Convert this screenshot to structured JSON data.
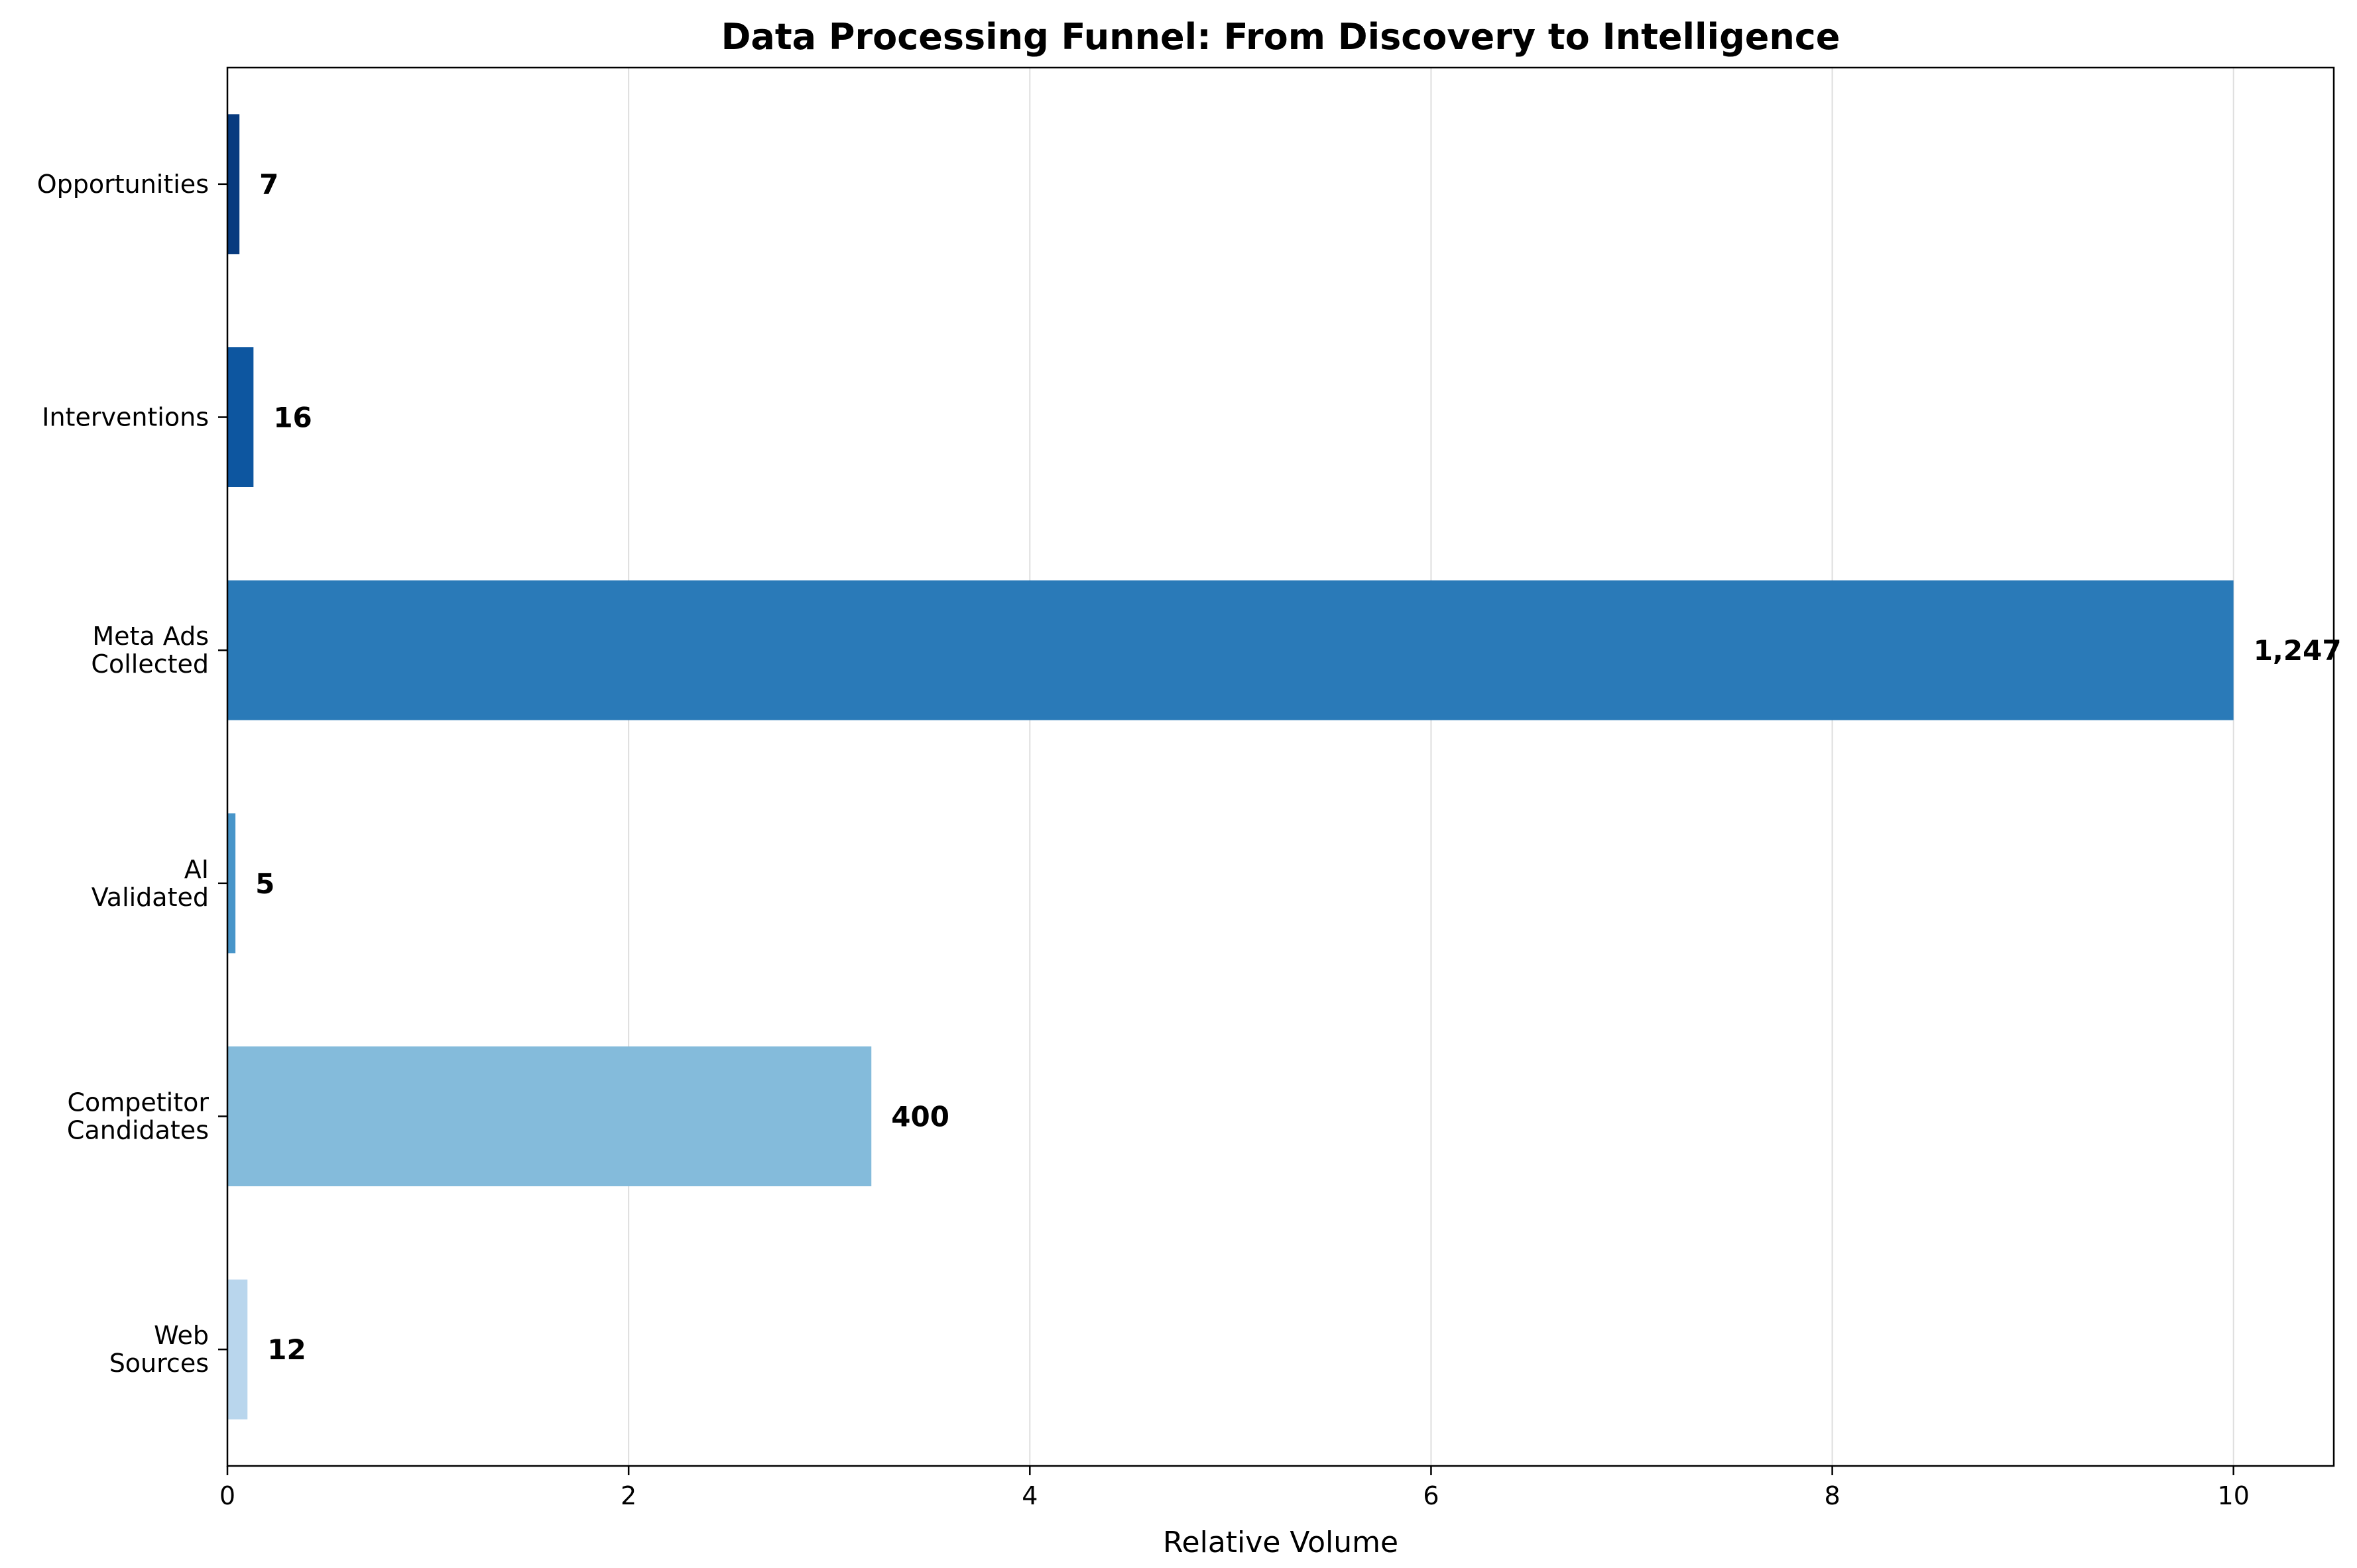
{
  "chart_data": {
    "type": "bar",
    "orientation": "horizontal",
    "title": "Data Processing Funnel: From Discovery to Intelligence",
    "xlabel": "Relative Volume",
    "ylabel": "",
    "xlim": [
      0,
      10.5
    ],
    "xticks": [
      0,
      2,
      4,
      6,
      8,
      10
    ],
    "grid": "vertical",
    "categories": [
      [
        "Web",
        "Sources"
      ],
      [
        "Competitor",
        "Candidates"
      ],
      [
        "AI",
        "Validated"
      ],
      [
        "Meta Ads",
        "Collected"
      ],
      [
        "Interventions"
      ],
      [
        "Opportunities"
      ]
    ],
    "values": [
      0.1,
      3.21,
      0.04,
      10.0,
      0.13,
      0.06
    ],
    "value_labels": [
      "12",
      "400",
      "5",
      "1,247",
      "16",
      "7"
    ],
    "colors": [
      "#b9d6ed",
      "#84bbdb",
      "#4895c9",
      "#2a7ab8",
      "#0d56a0",
      "#083b7f"
    ]
  }
}
